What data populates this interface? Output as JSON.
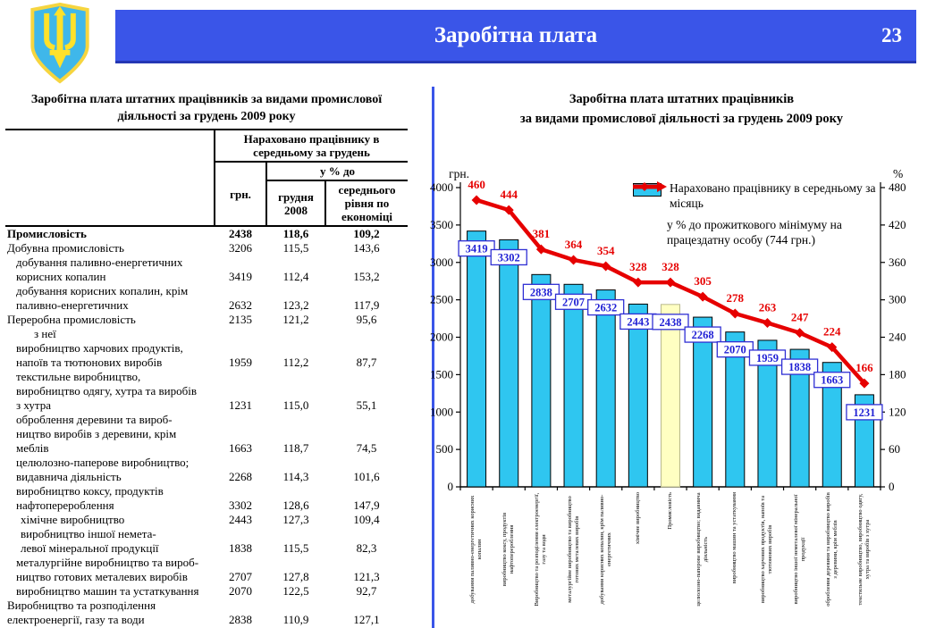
{
  "header": {
    "title": "Заробітна плата",
    "page": "23"
  },
  "table": {
    "title": "Заробітна плата штатних працівників за видами промислової\nдіяльності за грудень 2009 року",
    "col_headers": {
      "group": "Нараховано працівнику в\nсередньому за грудень",
      "grn": "грн.",
      "pct_group": "у % до",
      "sub1": "грудня\n2008",
      "sub2": "середнього\nрівня по\nекономіці"
    },
    "rows": [
      {
        "lines": [
          "Промисловість"
        ],
        "grn": "2438",
        "dec": "118,6",
        "econ": "109,2",
        "bold": true,
        "indent": 0
      },
      {
        "lines": [
          "Добувна промисловість"
        ],
        "grn": "3206",
        "dec": "115,5",
        "econ": "143,6",
        "bold": false,
        "indent": 0
      },
      {
        "lines": [
          "добування паливно-енергетичних",
          "корисних копалин"
        ],
        "grn": "3419",
        "dec": "112,4",
        "econ": "153,2",
        "bold": false,
        "indent": 1
      },
      {
        "lines": [
          "добування корисних копалин, крім",
          "паливно-енергетичних"
        ],
        "grn": "2632",
        "dec": "123,2",
        "econ": "117,9",
        "bold": false,
        "indent": 1
      },
      {
        "lines": [
          "Переробна промисловість"
        ],
        "grn": "2135",
        "dec": "121,2",
        "econ": "95,6",
        "bold": false,
        "indent": 0
      },
      {
        "lines": [
          "з неї"
        ],
        "grn": "",
        "dec": "",
        "econ": "",
        "bold": false,
        "indent": 3
      },
      {
        "lines": [
          "виробництво харчових продуктів,",
          "напоїв та тютюнових виробів"
        ],
        "grn": "1959",
        "dec": "112,2",
        "econ": "87,7",
        "bold": false,
        "indent": 1
      },
      {
        "lines": [
          "текстильне виробництво,",
          "виробництво одягу, хутра та виробів",
          "з хутра"
        ],
        "grn": "1231",
        "dec": "115,0",
        "econ": "55,1",
        "bold": false,
        "indent": 1
      },
      {
        "lines": [
          "оброблення деревини та вироб-",
          "ництво виробів з деревини, крім",
          "меблів"
        ],
        "grn": "1663",
        "dec": "118,7",
        "econ": "74,5",
        "bold": false,
        "indent": 1
      },
      {
        "lines": [
          "целюлозно-паперове виробництво;",
          "видавнича діяльність"
        ],
        "grn": "2268",
        "dec": "114,3",
        "econ": "101,6",
        "bold": false,
        "indent": 1
      },
      {
        "lines": [
          "виробництво коксу, продуктів",
          "нафтоперероблення"
        ],
        "grn": "3302",
        "dec": "128,6",
        "econ": "147,9",
        "bold": false,
        "indent": 1
      },
      {
        "lines": [
          "хімічне виробництво"
        ],
        "grn": "2443",
        "dec": "127,3",
        "econ": "109,4",
        "bold": false,
        "indent": 1.5
      },
      {
        "lines": [
          "виробництво іншої немета-",
          "левої мінеральної продукції"
        ],
        "grn": "1838",
        "dec": "115,5",
        "econ": "82,3",
        "bold": false,
        "indent": 1.5
      },
      {
        "lines": [
          "металургійне виробництво та вироб-",
          "ництво готових металевих виробів"
        ],
        "grn": "2707",
        "dec": "127,8",
        "econ": "121,3",
        "bold": false,
        "indent": 1
      },
      {
        "lines": [
          "виробництво машин та устаткування"
        ],
        "grn": "2070",
        "dec": "122,5",
        "econ": "92,7",
        "bold": false,
        "indent": 1
      },
      {
        "lines": [
          "Виробництво та розподілення",
          "електроенергії, газу та води"
        ],
        "grn": "2838",
        "dec": "110,9",
        "econ": "127,1",
        "bold": false,
        "indent": 0
      }
    ]
  },
  "chart_data": {
    "type": "bar+line",
    "title": "Заробітна плата штатних працівників\nза видами промислової діяльності за грудень 2009 року",
    "categories": [
      "добування паливно-енергетичних корисних копалин",
      "виробництво коксу, продуктів нафтоперероблення",
      "Виробництво та розподілення електроенергії, газу та води",
      "металургійне виробництво та виробництво готових металевих виробів",
      "добування корисних копалин, крім паливно-енергетичних",
      "хімічне виробництво",
      "Промисловість",
      "целюлозно-паперове виробництво; видавнича діяльність",
      "виробництво машин та устаткування",
      "виробництво харчових продуктів, напоїв та тютюнових виробів",
      "виробництво іншої неметалевої мінеральної продукції",
      "оброблення деревини та виробництво виробів з деревини, крім меблів",
      "текстильне виробництво, виробництво одягу, хутра та виробів з хутра"
    ],
    "series": [
      {
        "name": "Нараховано працівнику в середньому за місяць",
        "type": "bar",
        "axis": "left",
        "values": [
          3419,
          3302,
          2838,
          2707,
          2632,
          2443,
          2438,
          2268,
          2070,
          1959,
          1838,
          1663,
          1231
        ]
      },
      {
        "name": "у % до прожиткового мінімуму на працездатну особу (744 грн.)",
        "type": "line",
        "axis": "right",
        "values": [
          460,
          444,
          381,
          364,
          354,
          328,
          328,
          305,
          278,
          263,
          247,
          224,
          166
        ]
      }
    ],
    "left_axis": {
      "label": "грн.",
      "min": 0,
      "max": 4000,
      "step": 500
    },
    "right_axis": {
      "label": "%",
      "min": 0,
      "max": 480,
      "step": 60
    },
    "highlight_index": 6,
    "legend_position": "top-right-inside",
    "grid": false,
    "colors": {
      "bar": "#2fc6f0",
      "highlight": "#ffffc2",
      "highlight_border": "#b9b98d",
      "line": "#e60000",
      "value_text": "#1f1fd4",
      "value_border": "#2f2fd4",
      "header_blue": "#3a55e8"
    }
  }
}
